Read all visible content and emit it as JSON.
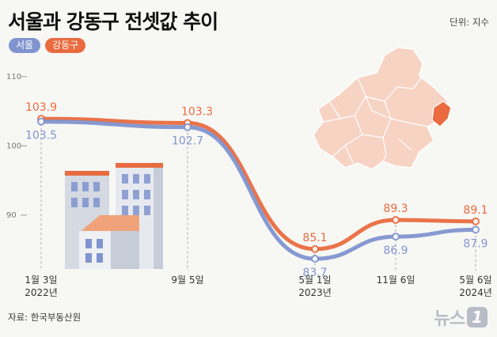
{
  "title": "서울과 강동구 전셋값 추이",
  "unit": "단위: 지수",
  "source": "자료: 한국부동산원",
  "logo": {
    "text": "뉴스",
    "badge": "1"
  },
  "colors": {
    "seoul": "#8094cf",
    "gangdong": "#e96b3f",
    "map": "#f7d3c4",
    "map_highlight": "#e96b3f"
  },
  "chart_data": {
    "type": "line",
    "x": [
      "1월 3일\n2022년",
      "9월 5일",
      "5월 1일\n2023년",
      "11월 6일",
      "5월 6일\n2024년"
    ],
    "x_labels": [
      {
        "line1": "1월 3일",
        "line2": "2022년"
      },
      {
        "line1": "9월 5일",
        "line2": ""
      },
      {
        "line1": "5월 1일",
        "line2": "2023년"
      },
      {
        "line1": "11월 6일",
        "line2": ""
      },
      {
        "line1": "5월 6일",
        "line2": "2024년"
      }
    ],
    "yticks": [
      {
        "value": 110,
        "label": "110"
      },
      {
        "value": 100,
        "label": "100"
      },
      {
        "value": 90,
        "label": "90"
      }
    ],
    "ylim": [
      82,
      111
    ],
    "series": [
      {
        "name": "서울",
        "values": [
          103.5,
          102.7,
          83.7,
          86.9,
          87.9
        ],
        "labels": [
          "103.5",
          "102.7",
          "83.7",
          "86.9",
          "87.9"
        ]
      },
      {
        "name": "강동구",
        "values": [
          103.9,
          103.3,
          85.1,
          89.3,
          89.1
        ],
        "labels": [
          "103.9",
          "103.3",
          "85.1",
          "89.3",
          "89.1"
        ]
      }
    ],
    "legend": "top-left",
    "grid": false
  }
}
